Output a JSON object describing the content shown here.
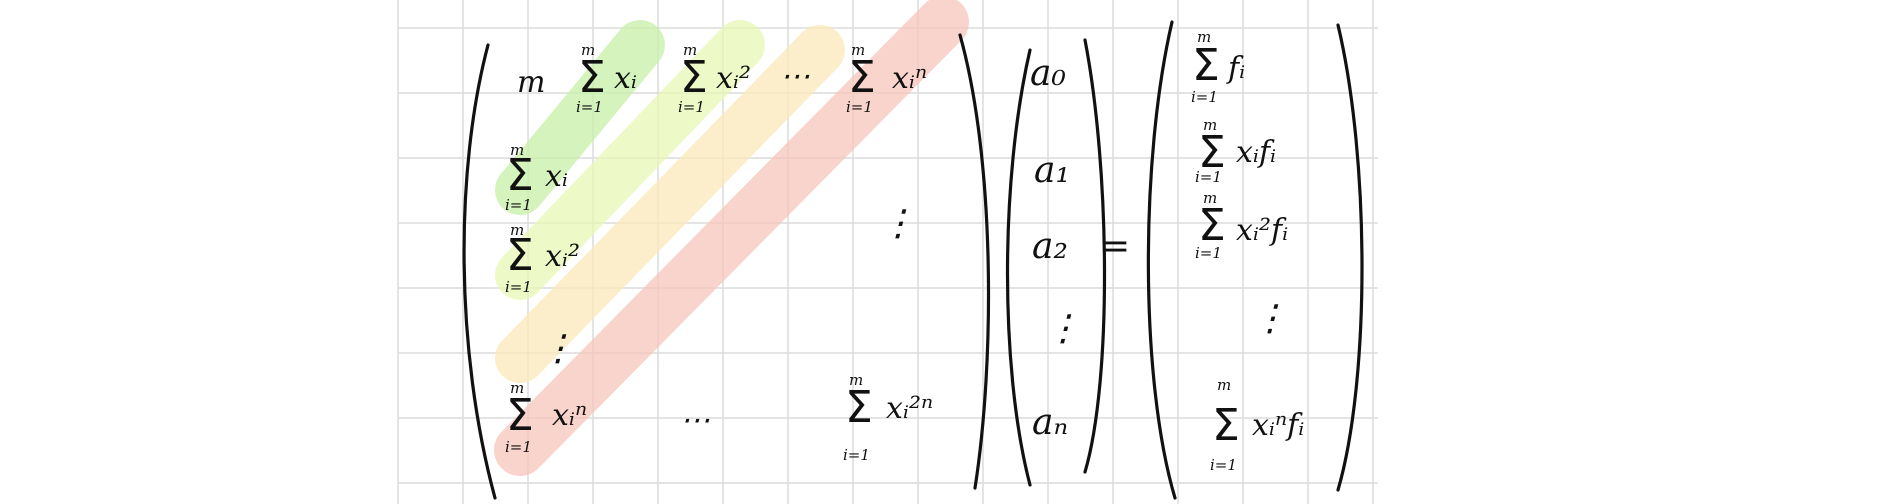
{
  "palette": {
    "grid": "#dcdcdc",
    "ink": "#111111",
    "band_green": "#c8f0a8",
    "band_lime": "#e9f7b6",
    "band_yellow": "#fbe9b9",
    "band_red": "#f7c6bd"
  },
  "matrix": {
    "row1": {
      "m": "m",
      "sum1_upper": "m",
      "sum1_lower": "i=1",
      "sum1_term": "xᵢ",
      "sum2_upper": "m",
      "sum2_lower": "i=1",
      "sum2_term": "xᵢ²",
      "dots": "⋯",
      "sum3_upper": "m",
      "sum3_lower": "i=1",
      "sum3_term": "xᵢⁿ"
    },
    "row2": {
      "sum_upper": "m",
      "sum_lower": "i=1",
      "sum_term": "xᵢ"
    },
    "row3": {
      "sum_upper": "m",
      "sum_lower": "i=1",
      "sum_term": "xᵢ²"
    },
    "vdots_left": "⋮",
    "vdots_right": "⋮",
    "last_row": {
      "sum1_upper": "m",
      "sum1_lower": "i=1",
      "sum1_term": "xᵢⁿ",
      "dots": "⋯",
      "sum2_upper": "m",
      "sum2_lower": "i=1",
      "sum2_term": "xᵢ²ⁿ"
    }
  },
  "coefficients": [
    "a₀",
    "a₁",
    "a₂",
    "⋮",
    "aₙ"
  ],
  "equals": "=",
  "rhs": {
    "r1": {
      "upper": "m",
      "lower": "i=1",
      "term": "fᵢ"
    },
    "r2": {
      "upper": "m",
      "lower": "i=1",
      "term": "xᵢfᵢ"
    },
    "r3": {
      "upper": "m",
      "lower": "i=1",
      "term": "xᵢ²fᵢ"
    },
    "vdots": "⋮",
    "rn": {
      "upper": "m",
      "lower": "i=1",
      "term": "xᵢⁿfᵢ"
    }
  }
}
